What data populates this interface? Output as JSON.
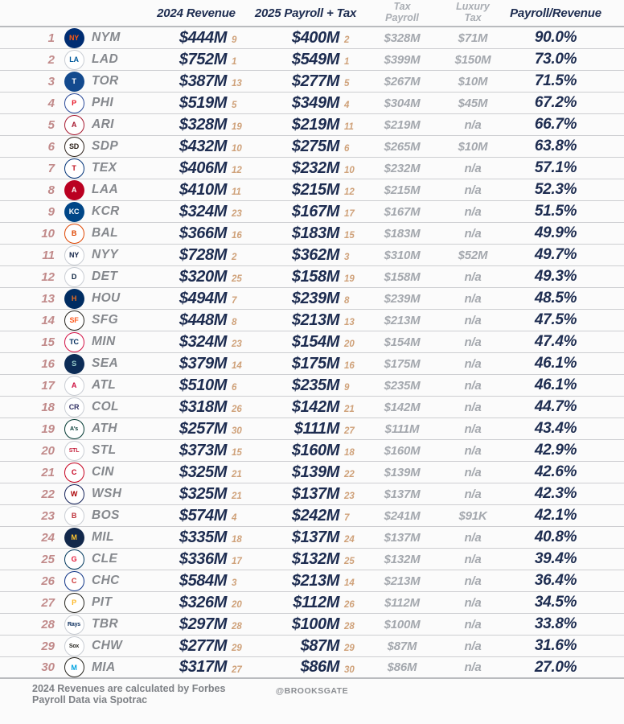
{
  "chart_data": {
    "type": "table",
    "columns": {
      "col_revenue": "2024 Revenue",
      "col_payroll": "2025 Payroll + Tax",
      "col_tax_line1": "Tax",
      "col_tax_line2": "Payroll",
      "col_lux_line1": "Luxury",
      "col_lux_line2": "Tax",
      "col_ratio": "Payroll/Revenue"
    },
    "rows": [
      {
        "rank": "1",
        "team": "NYM",
        "logo": {
          "text": "NY",
          "bg": "#002d72",
          "fg": "#ff5910"
        },
        "revenue": "$444M",
        "revenue_rank": "9",
        "payroll": "$400M",
        "payroll_rank": "2",
        "tax_payroll": "$328M",
        "luxury_tax": "$71M",
        "ratio": "90.0%"
      },
      {
        "rank": "2",
        "team": "LAD",
        "logo": {
          "text": "LA",
          "bg": "#ffffff",
          "fg": "#005a9c",
          "ring": "#c9cdd3"
        },
        "revenue": "$752M",
        "revenue_rank": "1",
        "payroll": "$549M",
        "payroll_rank": "1",
        "tax_payroll": "$399M",
        "luxury_tax": "$150M",
        "ratio": "73.0%"
      },
      {
        "rank": "3",
        "team": "TOR",
        "logo": {
          "text": "T",
          "bg": "#134a8e",
          "fg": "#ffffff"
        },
        "revenue": "$387M",
        "revenue_rank": "13",
        "payroll": "$277M",
        "payroll_rank": "5",
        "tax_payroll": "$267M",
        "luxury_tax": "$10M",
        "ratio": "71.5%"
      },
      {
        "rank": "4",
        "team": "PHI",
        "logo": {
          "text": "P",
          "bg": "#ffffff",
          "fg": "#e81828",
          "ring": "#284898"
        },
        "revenue": "$519M",
        "revenue_rank": "5",
        "payroll": "$349M",
        "payroll_rank": "4",
        "tax_payroll": "$304M",
        "luxury_tax": "$45M",
        "ratio": "67.2%"
      },
      {
        "rank": "5",
        "team": "ARI",
        "logo": {
          "text": "A",
          "bg": "#ffffff",
          "fg": "#a71930",
          "ring": "#a71930"
        },
        "revenue": "$328M",
        "revenue_rank": "19",
        "payroll": "$219M",
        "payroll_rank": "11",
        "tax_payroll": "$219M",
        "luxury_tax": "n/a",
        "ratio": "66.7%"
      },
      {
        "rank": "6",
        "team": "SDP",
        "logo": {
          "text": "SD",
          "bg": "#ffffff",
          "fg": "#2f241d",
          "ring": "#2f241d"
        },
        "revenue": "$432M",
        "revenue_rank": "10",
        "payroll": "$275M",
        "payroll_rank": "6",
        "tax_payroll": "$265M",
        "luxury_tax": "$10M",
        "ratio": "63.8%"
      },
      {
        "rank": "7",
        "team": "TEX",
        "logo": {
          "text": "T",
          "bg": "#ffffff",
          "fg": "#c0111f",
          "ring": "#003278"
        },
        "revenue": "$406M",
        "revenue_rank": "12",
        "payroll": "$232M",
        "payroll_rank": "10",
        "tax_payroll": "$232M",
        "luxury_tax": "n/a",
        "ratio": "57.1%"
      },
      {
        "rank": "8",
        "team": "LAA",
        "logo": {
          "text": "A",
          "bg": "#ba0021",
          "fg": "#ffffff"
        },
        "revenue": "$410M",
        "revenue_rank": "11",
        "payroll": "$215M",
        "payroll_rank": "12",
        "tax_payroll": "$215M",
        "luxury_tax": "n/a",
        "ratio": "52.3%"
      },
      {
        "rank": "9",
        "team": "KCR",
        "logo": {
          "text": "KC",
          "bg": "#004687",
          "fg": "#ffffff"
        },
        "revenue": "$324M",
        "revenue_rank": "23",
        "payroll": "$167M",
        "payroll_rank": "17",
        "tax_payroll": "$167M",
        "luxury_tax": "n/a",
        "ratio": "51.5%"
      },
      {
        "rank": "10",
        "team": "BAL",
        "logo": {
          "text": "B",
          "bg": "#ffffff",
          "fg": "#df4601",
          "ring": "#df4601"
        },
        "revenue": "$366M",
        "revenue_rank": "16",
        "payroll": "$183M",
        "payroll_rank": "15",
        "tax_payroll": "$183M",
        "luxury_tax": "n/a",
        "ratio": "49.9%"
      },
      {
        "rank": "11",
        "team": "NYY",
        "logo": {
          "text": "NY",
          "bg": "#ffffff",
          "fg": "#132448",
          "ring": "#c9cdd3"
        },
        "revenue": "$728M",
        "revenue_rank": "2",
        "payroll": "$362M",
        "payroll_rank": "3",
        "tax_payroll": "$310M",
        "luxury_tax": "$52M",
        "ratio": "49.7%"
      },
      {
        "rank": "12",
        "team": "DET",
        "logo": {
          "text": "D",
          "bg": "#ffffff",
          "fg": "#0c2340",
          "ring": "#c9cdd3"
        },
        "revenue": "$320M",
        "revenue_rank": "25",
        "payroll": "$158M",
        "payroll_rank": "19",
        "tax_payroll": "$158M",
        "luxury_tax": "n/a",
        "ratio": "49.3%"
      },
      {
        "rank": "13",
        "team": "HOU",
        "logo": {
          "text": "H",
          "bg": "#002d62",
          "fg": "#eb6e1f"
        },
        "revenue": "$494M",
        "revenue_rank": "7",
        "payroll": "$239M",
        "payroll_rank": "8",
        "tax_payroll": "$239M",
        "luxury_tax": "n/a",
        "ratio": "48.5%"
      },
      {
        "rank": "14",
        "team": "SFG",
        "logo": {
          "text": "SF",
          "bg": "#ffffff",
          "fg": "#fd5a1e",
          "ring": "#27251f"
        },
        "revenue": "$448M",
        "revenue_rank": "8",
        "payroll": "$213M",
        "payroll_rank": "13",
        "tax_payroll": "$213M",
        "luxury_tax": "n/a",
        "ratio": "47.5%"
      },
      {
        "rank": "15",
        "team": "MIN",
        "logo": {
          "text": "TC",
          "bg": "#ffffff",
          "fg": "#002b5c",
          "ring": "#d31145"
        },
        "revenue": "$324M",
        "revenue_rank": "23",
        "payroll": "$154M",
        "payroll_rank": "20",
        "tax_payroll": "$154M",
        "luxury_tax": "n/a",
        "ratio": "47.4%"
      },
      {
        "rank": "16",
        "team": "SEA",
        "logo": {
          "text": "S",
          "bg": "#0c2c56",
          "fg": "#9bd0cd"
        },
        "revenue": "$379M",
        "revenue_rank": "14",
        "payroll": "$175M",
        "payroll_rank": "16",
        "tax_payroll": "$175M",
        "luxury_tax": "n/a",
        "ratio": "46.1%"
      },
      {
        "rank": "17",
        "team": "ATL",
        "logo": {
          "text": "A",
          "bg": "#ffffff",
          "fg": "#ce1141",
          "ring": "#c9cdd3"
        },
        "revenue": "$510M",
        "revenue_rank": "6",
        "payroll": "$235M",
        "payroll_rank": "9",
        "tax_payroll": "$235M",
        "luxury_tax": "n/a",
        "ratio": "46.1%"
      },
      {
        "rank": "18",
        "team": "COL",
        "logo": {
          "text": "CR",
          "bg": "#ffffff",
          "fg": "#333366",
          "ring": "#c9cdd3"
        },
        "revenue": "$318M",
        "revenue_rank": "26",
        "payroll": "$142M",
        "payroll_rank": "21",
        "tax_payroll": "$142M",
        "luxury_tax": "n/a",
        "ratio": "44.7%"
      },
      {
        "rank": "19",
        "team": "ATH",
        "logo": {
          "text": "A's",
          "bg": "#ffffff",
          "fg": "#003831",
          "ring": "#003831"
        },
        "revenue": "$257M",
        "revenue_rank": "30",
        "payroll": "$111M",
        "payroll_rank": "27",
        "tax_payroll": "$111M",
        "luxury_tax": "n/a",
        "ratio": "43.4%"
      },
      {
        "rank": "20",
        "team": "STL",
        "logo": {
          "text": "STL",
          "bg": "#ffffff",
          "fg": "#c41e3a",
          "ring": "#c9cdd3"
        },
        "revenue": "$373M",
        "revenue_rank": "15",
        "payroll": "$160M",
        "payroll_rank": "18",
        "tax_payroll": "$160M",
        "luxury_tax": "n/a",
        "ratio": "42.9%"
      },
      {
        "rank": "21",
        "team": "CIN",
        "logo": {
          "text": "C",
          "bg": "#ffffff",
          "fg": "#c6011f",
          "ring": "#c6011f"
        },
        "revenue": "$325M",
        "revenue_rank": "21",
        "payroll": "$139M",
        "payroll_rank": "22",
        "tax_payroll": "$139M",
        "luxury_tax": "n/a",
        "ratio": "42.6%"
      },
      {
        "rank": "22",
        "team": "WSH",
        "logo": {
          "text": "W",
          "bg": "#ffffff",
          "fg": "#ab0003",
          "ring": "#14225a"
        },
        "revenue": "$325M",
        "revenue_rank": "21",
        "payroll": "$137M",
        "payroll_rank": "23",
        "tax_payroll": "$137M",
        "luxury_tax": "n/a",
        "ratio": "42.3%"
      },
      {
        "rank": "23",
        "team": "BOS",
        "logo": {
          "text": "B",
          "bg": "#ffffff",
          "fg": "#bd3039",
          "ring": "#c9cdd3"
        },
        "revenue": "$574M",
        "revenue_rank": "4",
        "payroll": "$242M",
        "payroll_rank": "7",
        "tax_payroll": "$241M",
        "luxury_tax": "$91K",
        "ratio": "42.1%"
      },
      {
        "rank": "24",
        "team": "MIL",
        "logo": {
          "text": "M",
          "bg": "#12284b",
          "fg": "#ffc52f"
        },
        "revenue": "$335M",
        "revenue_rank": "18",
        "payroll": "$137M",
        "payroll_rank": "24",
        "tax_payroll": "$137M",
        "luxury_tax": "n/a",
        "ratio": "40.8%"
      },
      {
        "rank": "25",
        "team": "CLE",
        "logo": {
          "text": "G",
          "bg": "#ffffff",
          "fg": "#e31937",
          "ring": "#00385d"
        },
        "revenue": "$336M",
        "revenue_rank": "17",
        "payroll": "$132M",
        "payroll_rank": "25",
        "tax_payroll": "$132M",
        "luxury_tax": "n/a",
        "ratio": "39.4%"
      },
      {
        "rank": "26",
        "team": "CHC",
        "logo": {
          "text": "C",
          "bg": "#ffffff",
          "fg": "#cc3433",
          "ring": "#0e3386"
        },
        "revenue": "$584M",
        "revenue_rank": "3",
        "payroll": "$213M",
        "payroll_rank": "14",
        "tax_payroll": "$213M",
        "luxury_tax": "n/a",
        "ratio": "36.4%"
      },
      {
        "rank": "27",
        "team": "PIT",
        "logo": {
          "text": "P",
          "bg": "#ffffff",
          "fg": "#fdb827",
          "ring": "#27251f"
        },
        "revenue": "$326M",
        "revenue_rank": "20",
        "payroll": "$112M",
        "payroll_rank": "26",
        "tax_payroll": "$112M",
        "luxury_tax": "n/a",
        "ratio": "34.5%"
      },
      {
        "rank": "28",
        "team": "TBR",
        "logo": {
          "text": "Rays",
          "bg": "#ffffff",
          "fg": "#092c5c",
          "ring": "#c9cdd3"
        },
        "revenue": "$297M",
        "revenue_rank": "28",
        "payroll": "$100M",
        "payroll_rank": "28",
        "tax_payroll": "$100M",
        "luxury_tax": "n/a",
        "ratio": "33.8%"
      },
      {
        "rank": "29",
        "team": "CHW",
        "logo": {
          "text": "Sox",
          "bg": "#ffffff",
          "fg": "#27251f",
          "ring": "#c9cdd3"
        },
        "revenue": "$277M",
        "revenue_rank": "29",
        "payroll": "$87M",
        "payroll_rank": "29",
        "tax_payroll": "$87M",
        "luxury_tax": "n/a",
        "ratio": "31.6%"
      },
      {
        "rank": "30",
        "team": "MIA",
        "logo": {
          "text": "M",
          "bg": "#ffffff",
          "fg": "#00a3e0",
          "ring": "#27251f"
        },
        "revenue": "$317M",
        "revenue_rank": "27",
        "payroll": "$86M",
        "payroll_rank": "30",
        "tax_payroll": "$86M",
        "luxury_tax": "n/a",
        "ratio": "27.0%"
      }
    ]
  },
  "footer": {
    "line1": "2024 Revenues are calculated by Forbes",
    "line2": "Payroll Data via Spotrac",
    "credit": "@BROOKSGATE"
  },
  "colors": {
    "navy_text": "#1d2c50",
    "rank_rose": "#c18a8a",
    "team_gray": "#85888d",
    "sub_rank_tan": "#cfa179",
    "tax_gray": "#a4a8ae",
    "separator": "#cdced1"
  }
}
